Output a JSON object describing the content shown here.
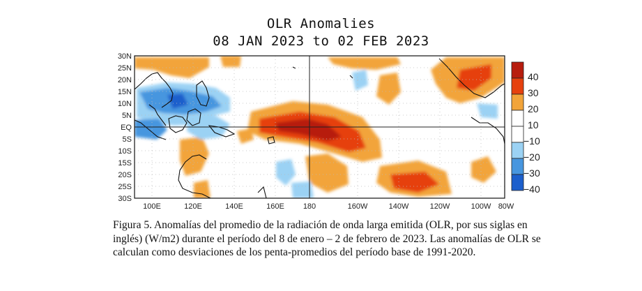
{
  "title": "OLR Anomalies",
  "subtitle": "08 JAN 2023 to 02 FEB 2023",
  "lat_labels": [
    "30N",
    "25N",
    "20N",
    "15N",
    "10N",
    "5N",
    "EQ",
    "5S",
    "10S",
    "15S",
    "20S",
    "25S",
    "30S"
  ],
  "lon_labels": [
    "100E",
    "120E",
    "140E",
    "160E",
    "180",
    "160W",
    "140W",
    "120W",
    "100W",
    "80W"
  ],
  "colorbar": {
    "labels": [
      "40",
      "30",
      "20",
      "10",
      "−10",
      "−20",
      "−30",
      "−40"
    ],
    "colors": [
      "#b71d0e",
      "#e6410e",
      "#f2a43a",
      "#ffffff",
      "#ffffff",
      "#9bd2f4",
      "#4796df",
      "#1c5fcc"
    ]
  },
  "caption": "Figura 5. Anomalías del promedio de la radiación de onda larga emitida (OLR, por sus siglas en inglés) (W/m2) durante el período del 8 de enero – 2 de febrero de 2023.  Las anomalías de OLR se calculan como desviaciones de los penta-promedios del período base de 1991-2020."
}
